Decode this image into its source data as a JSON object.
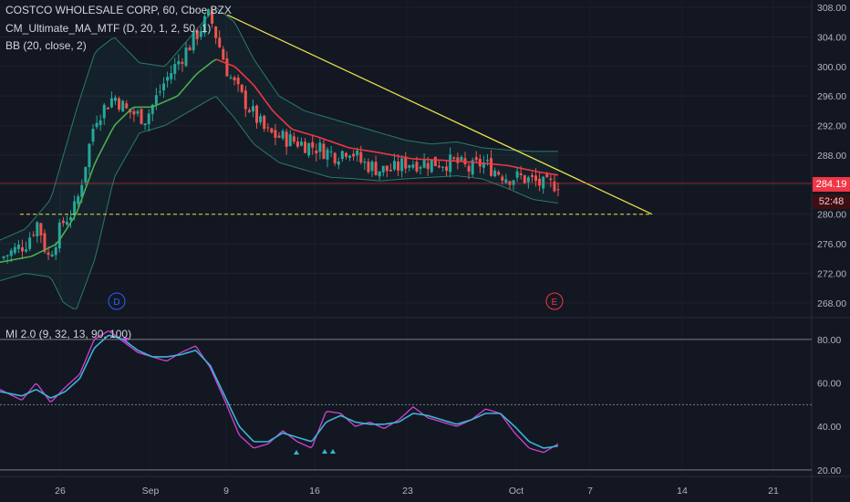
{
  "legend": {
    "title": "COSTCO WHOLESALE CORP, 60, Cboe BZX",
    "ma": "CM_Ultimate_MA_MTF (D, 20, 1, 2, 50, 1)",
    "bb": "BB (20, close, 2)",
    "osc": "MI 2.0 (9, 32, 13, 90, 100)"
  },
  "price_tags": {
    "last": "284.19",
    "countdown": "52:48"
  },
  "colors": {
    "background": "#131722",
    "up": "#26a69a",
    "down": "#ef5350",
    "ma_green": "#4caf50",
    "ma_red": "#f23645",
    "trend": "#e6e14a",
    "osc_fast": "#d142d1",
    "osc_slow": "#3bb4d6",
    "bands": "#2a7a6e"
  },
  "chart_data": [
    {
      "type": "candlestick",
      "title": "COSTCO WHOLESALE CORP, 60, Cboe BZX",
      "ylim": [
        266,
        309
      ],
      "y_ticks": [
        "308.00",
        "304.00",
        "300.00",
        "296.00",
        "292.00",
        "288.00",
        "284.00",
        "280.00",
        "276.00",
        "272.00",
        "268.00"
      ],
      "x_ticks": [
        "26",
        "Sep",
        "9",
        "16",
        "23",
        "Oct",
        "7",
        "14",
        "21"
      ],
      "last_price": 284.19,
      "series": [
        {
          "name": "CM_Ultimate_MA_MTF (D, 20, 1, 2, 50, 1)",
          "kind": "moving-average"
        },
        {
          "name": "BB (20, close, 2)",
          "kind": "bollinger-bands"
        }
      ],
      "approx_path": {
        "close": [
          [
            0,
            274
          ],
          [
            0.04,
            276
          ],
          [
            0.06,
            279
          ],
          [
            0.075,
            274
          ],
          [
            0.1,
            279
          ],
          [
            0.12,
            281
          ],
          [
            0.15,
            293
          ],
          [
            0.18,
            296
          ],
          [
            0.2,
            294
          ],
          [
            0.23,
            293
          ],
          [
            0.26,
            298
          ],
          [
            0.3,
            303
          ],
          [
            0.33,
            307
          ],
          [
            0.36,
            299
          ],
          [
            0.38,
            296
          ],
          [
            0.42,
            291
          ],
          [
            0.46,
            290
          ],
          [
            0.5,
            289
          ],
          [
            0.53,
            288
          ],
          [
            0.55,
            289
          ],
          [
            0.57,
            287
          ],
          [
            0.6,
            286
          ],
          [
            0.62,
            286
          ],
          [
            0.64,
            287
          ],
          [
            0.66,
            287
          ],
          [
            0.69,
            287
          ],
          [
            0.72,
            287
          ],
          [
            0.74,
            286
          ],
          [
            0.76,
            287
          ],
          [
            0.78,
            286
          ],
          [
            0.8,
            285
          ],
          [
            0.82,
            285
          ],
          [
            0.84,
            284.5
          ],
          [
            0.86,
            283.8
          ],
          [
            0.88,
            284.2
          ]
        ],
        "ma": [
          [
            0,
            273.5
          ],
          [
            0.05,
            274.3
          ],
          [
            0.09,
            276
          ],
          [
            0.12,
            280
          ],
          [
            0.15,
            287
          ],
          [
            0.18,
            292
          ],
          [
            0.21,
            294.5
          ],
          [
            0.24,
            294.5
          ],
          [
            0.28,
            296
          ],
          [
            0.31,
            299
          ],
          [
            0.34,
            301
          ],
          [
            0.37,
            300
          ],
          [
            0.4,
            297.5
          ],
          [
            0.43,
            294
          ],
          [
            0.46,
            291.5
          ],
          [
            0.5,
            290.5
          ],
          [
            0.55,
            289
          ],
          [
            0.6,
            288.3
          ],
          [
            0.65,
            287.5
          ],
          [
            0.7,
            287.3
          ],
          [
            0.75,
            287
          ],
          [
            0.8,
            286.6
          ],
          [
            0.85,
            285.7
          ],
          [
            0.88,
            285.3
          ]
        ],
        "bb_upper": [
          [
            0,
            276.5
          ],
          [
            0.04,
            278
          ],
          [
            0.08,
            282
          ],
          [
            0.12,
            294
          ],
          [
            0.15,
            302
          ],
          [
            0.18,
            304
          ],
          [
            0.22,
            300.5
          ],
          [
            0.26,
            300
          ],
          [
            0.3,
            304
          ],
          [
            0.34,
            308
          ],
          [
            0.37,
            306
          ],
          [
            0.4,
            301
          ],
          [
            0.44,
            296
          ],
          [
            0.48,
            294
          ],
          [
            0.52,
            293
          ],
          [
            0.56,
            292
          ],
          [
            0.6,
            291
          ],
          [
            0.64,
            290
          ],
          [
            0.68,
            289.5
          ],
          [
            0.72,
            289.8
          ],
          [
            0.76,
            289
          ],
          [
            0.8,
            288.7
          ],
          [
            0.84,
            288.5
          ],
          [
            0.88,
            288.5
          ]
        ],
        "bb_lower": [
          [
            0,
            271
          ],
          [
            0.04,
            272
          ],
          [
            0.08,
            271.5
          ],
          [
            0.1,
            268
          ],
          [
            0.12,
            267
          ],
          [
            0.15,
            274
          ],
          [
            0.18,
            285
          ],
          [
            0.22,
            291
          ],
          [
            0.26,
            292
          ],
          [
            0.3,
            294
          ],
          [
            0.34,
            296
          ],
          [
            0.37,
            293
          ],
          [
            0.4,
            289.5
          ],
          [
            0.44,
            287
          ],
          [
            0.48,
            286
          ],
          [
            0.52,
            285
          ],
          [
            0.56,
            284.8
          ],
          [
            0.6,
            284.5
          ],
          [
            0.64,
            284.8
          ],
          [
            0.68,
            285
          ],
          [
            0.72,
            285.2
          ],
          [
            0.76,
            284.8
          ],
          [
            0.8,
            283.5
          ],
          [
            0.84,
            282
          ],
          [
            0.88,
            281.5
          ]
        ]
      },
      "annotations": [
        {
          "label": "horizontal dashed support",
          "price": 280
        },
        {
          "label": "descending trendline"
        },
        {
          "label": "D",
          "kind": "event"
        },
        {
          "label": "E",
          "kind": "event"
        }
      ]
    },
    {
      "type": "line",
      "title": "MI 2.0 (9, 32, 13, 90, 100)",
      "ylim": [
        17,
        90
      ],
      "y_ticks": [
        "80.00",
        "60.00",
        "40.00",
        "20.00"
      ],
      "levels": [
        80,
        50,
        20
      ],
      "series": [
        {
          "values": [
            [
              0,
              57
            ],
            [
              0.03,
              52
            ],
            [
              0.05,
              60
            ],
            [
              0.07,
              51
            ],
            [
              0.09,
              58
            ],
            [
              0.11,
              64
            ],
            [
              0.13,
              80
            ],
            [
              0.15,
              84
            ],
            [
              0.17,
              79
            ],
            [
              0.19,
              74
            ],
            [
              0.21,
              72
            ],
            [
              0.23,
              70
            ],
            [
              0.25,
              74
            ],
            [
              0.27,
              77
            ],
            [
              0.29,
              67
            ],
            [
              0.31,
              52
            ],
            [
              0.33,
              36
            ],
            [
              0.35,
              30
            ],
            [
              0.37,
              32
            ],
            [
              0.39,
              38
            ],
            [
              0.41,
              33
            ],
            [
              0.43,
              30
            ],
            [
              0.45,
              47
            ],
            [
              0.47,
              46
            ],
            [
              0.49,
              40
            ],
            [
              0.51,
              42
            ],
            [
              0.53,
              39
            ],
            [
              0.55,
              43
            ],
            [
              0.57,
              49
            ],
            [
              0.59,
              44
            ],
            [
              0.61,
              42
            ],
            [
              0.63,
              40
            ],
            [
              0.65,
              43
            ],
            [
              0.67,
              48
            ],
            [
              0.69,
              46
            ],
            [
              0.71,
              37
            ],
            [
              0.73,
              30
            ],
            [
              0.75,
              28
            ],
            [
              0.77,
              32
            ]
          ]
        },
        {
          "values": [
            [
              0,
              56
            ],
            [
              0.03,
              54
            ],
            [
              0.05,
              57
            ],
            [
              0.07,
              53
            ],
            [
              0.09,
              56
            ],
            [
              0.11,
              62
            ],
            [
              0.13,
              76
            ],
            [
              0.15,
              82
            ],
            [
              0.17,
              80
            ],
            [
              0.19,
              75
            ],
            [
              0.21,
              72
            ],
            [
              0.23,
              72
            ],
            [
              0.25,
              73
            ],
            [
              0.27,
              75
            ],
            [
              0.29,
              68
            ],
            [
              0.31,
              54
            ],
            [
              0.33,
              40
            ],
            [
              0.35,
              33
            ],
            [
              0.37,
              33
            ],
            [
              0.39,
              37
            ],
            [
              0.41,
              35
            ],
            [
              0.43,
              33
            ],
            [
              0.45,
              42
            ],
            [
              0.47,
              45
            ],
            [
              0.49,
              42
            ],
            [
              0.51,
              41
            ],
            [
              0.53,
              41
            ],
            [
              0.55,
              42
            ],
            [
              0.57,
              46
            ],
            [
              0.59,
              45
            ],
            [
              0.61,
              43
            ],
            [
              0.63,
              41
            ],
            [
              0.65,
              43
            ],
            [
              0.67,
              46
            ],
            [
              0.69,
              46
            ],
            [
              0.71,
              40
            ],
            [
              0.73,
              33
            ],
            [
              0.75,
              30
            ],
            [
              0.77,
              31
            ]
          ]
        }
      ]
    }
  ]
}
